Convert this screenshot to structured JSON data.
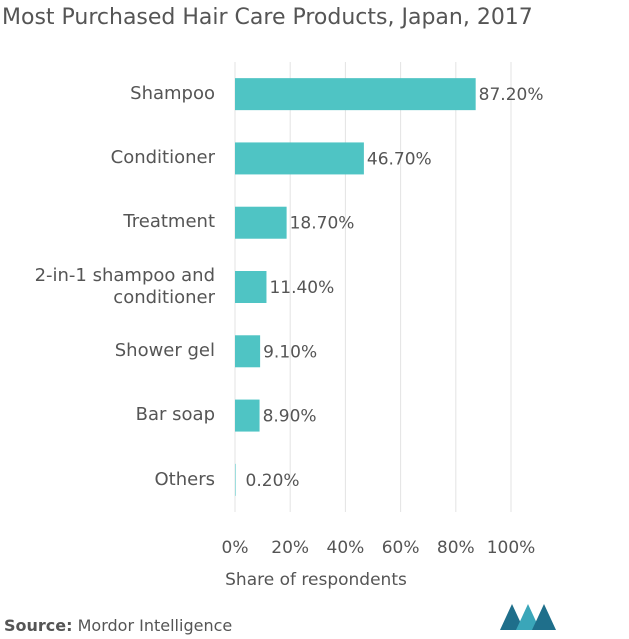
{
  "chart_data": {
    "type": "barh",
    "title": "Most Purchased Hair Care Products, Japan, 2017",
    "categories": [
      "Shampoo",
      "Conditioner",
      "Treatment",
      "2-in-1  shampoo and conditioner",
      "Shower gel",
      "Bar soap",
      "Others"
    ],
    "values": [
      87.2,
      46.7,
      18.7,
      11.4,
      9.1,
      8.9,
      0.2
    ],
    "value_labels": [
      "87.20%",
      "46.70%",
      "18.70%",
      "11.40%",
      "9.10%",
      "8.90%",
      "0.20%"
    ],
    "color": "#4fc4c4",
    "xlabel": "Share of respondents",
    "xlim": [
      0,
      100
    ],
    "xticks": [
      {
        "value": 0,
        "label": "0%"
      },
      {
        "value": 20,
        "label": "20%"
      },
      {
        "value": 40,
        "label": "40%"
      },
      {
        "value": 60,
        "label": "60%"
      },
      {
        "value": 80,
        "label": "80%"
      },
      {
        "value": 100,
        "label": "100%"
      }
    ],
    "grid": true
  },
  "footer": {
    "source_label": "Source:",
    "source": "Mordor Intelligence"
  }
}
